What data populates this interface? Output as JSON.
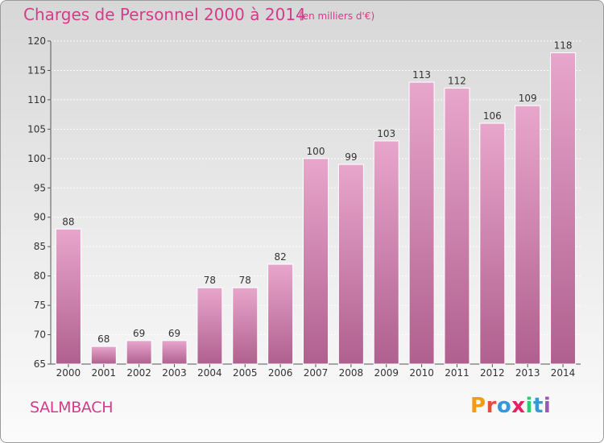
{
  "header": {
    "title": "Charges de Personnel 2000 à 2014",
    "subtitle": "(en milliers d'€)"
  },
  "footer": {
    "commune": "SALMBACH",
    "logo_letters": [
      "P",
      "r",
      "o",
      "x",
      "i",
      "t",
      "i"
    ],
    "logo_colors": [
      "#f39c12",
      "#e74c3c",
      "#3498db",
      "#e91e63",
      "#2ecc71",
      "#3498db",
      "#9b59b6"
    ]
  },
  "colors": {
    "bar_top": "#e8a6cc",
    "bar_bottom": "#b0608e",
    "text_accent": "#d63a8a",
    "axis": "#555555"
  },
  "chart_data": {
    "type": "bar",
    "title": "Charges de Personnel 2000 à 2014",
    "categories": [
      "2000",
      "2001",
      "2002",
      "2003",
      "2004",
      "2005",
      "2006",
      "2007",
      "2008",
      "2009",
      "2010",
      "2011",
      "2012",
      "2013",
      "2014"
    ],
    "values": [
      88,
      68,
      69,
      69,
      78,
      78,
      82,
      100,
      99,
      103,
      113,
      112,
      106,
      109,
      118
    ],
    "ylim": [
      65,
      120
    ],
    "yticks": [
      65,
      70,
      75,
      80,
      85,
      90,
      95,
      100,
      105,
      110,
      115,
      120
    ],
    "grid": "horizontal",
    "data_labels": true
  }
}
